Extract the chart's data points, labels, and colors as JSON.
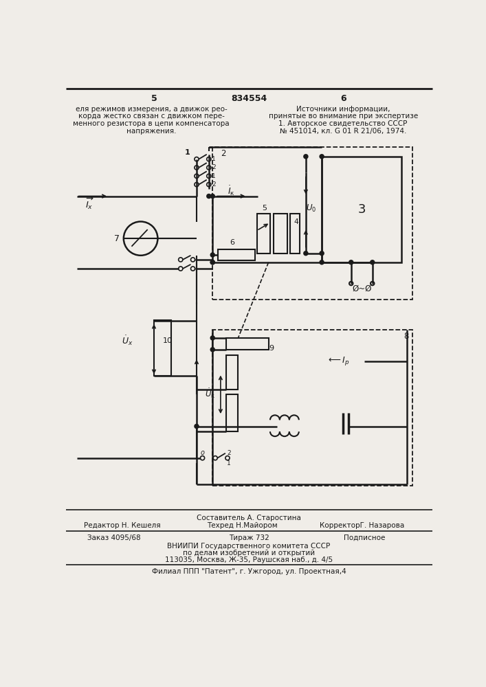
{
  "bg_color": "#f0ede8",
  "line_color": "#1a1a1a",
  "page_number_left": "5",
  "page_number_center": "834554",
  "page_number_right": "6",
  "top_left_text": [
    "еля режимов измерения, а движок рео-",
    "корда жестко связан с движком пере-",
    "менного резистора в цепи компенсатора",
    "напряжения."
  ],
  "top_right_text": [
    "Источники информации,",
    "принятые во внимание при экспертизе",
    "1. Авторское свидетельство СССР",
    "№ 451014, кл. G 01 R 21/06, 1974."
  ],
  "bottom_staff_line1": "Составитель А. Старостина",
  "bottom_left": "Редактор Н. Кешеля",
  "bottom_center": "Техред Н.Майором",
  "bottom_right": "КорректорГ. Назарова",
  "bottom_line2_left": "Заказ 4095/68",
  "bottom_line2_center": "Тираж 732",
  "bottom_line2_right": "Подписное",
  "bottom_line3": "ВНИИПИ Государственного комитета СССР",
  "bottom_line4": "по делам изобретений и открытий",
  "bottom_line5": "113035, Москва, Ж-35, Раушская наб., д. 4/5",
  "bottom_line6": "Филиал ППП \"Патент\", г. Ужгород, ул. Проектная,4"
}
